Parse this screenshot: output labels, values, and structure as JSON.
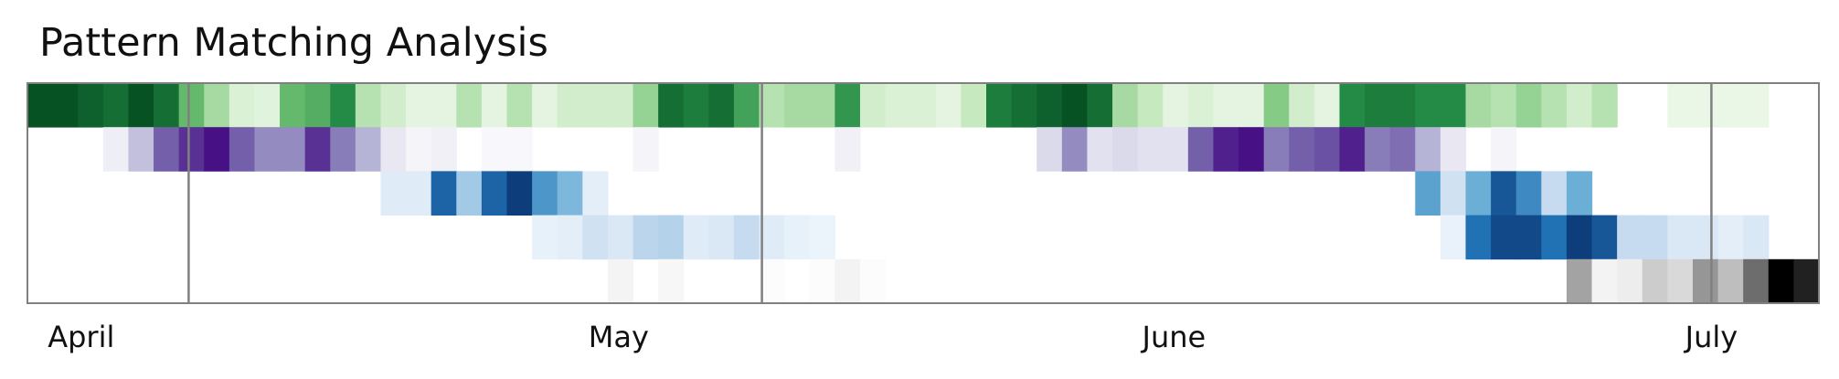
{
  "chart_data": {
    "type": "heatmap",
    "title": "Pattern Matching Analysis",
    "x_unit": "day",
    "x_start": "2023-03-29",
    "x_end": "2023-07-07",
    "month_labels": [
      {
        "label": "April",
        "date": "2023-04-01"
      },
      {
        "label": "May",
        "date": "2023-05-01"
      },
      {
        "label": "June",
        "date": "2023-06-01"
      },
      {
        "label": "July",
        "date": "2023-07-01"
      }
    ],
    "month_boundaries": [
      "2023-04-07",
      "2023-05-09",
      "2023-07-01"
    ],
    "value_range": [
      0,
      1
    ],
    "rows": [
      {
        "colormap": "Greens",
        "values": [
          0.95,
          0.95,
          0.9,
          0.85,
          0.95,
          0.85,
          0.55,
          0.35,
          0.15,
          0.12,
          0.55,
          0.6,
          0.75,
          0.3,
          0.2,
          0.1,
          0.1,
          0.3,
          0.1,
          0.3,
          0.1,
          0.2,
          0.2,
          0.2,
          0.4,
          0.85,
          0.8,
          0.85,
          0.65,
          0.3,
          0.35,
          0.35,
          0.7,
          0.2,
          0.15,
          0.15,
          0.1,
          0.25,
          0.8,
          0.85,
          0.9,
          0.95,
          0.85,
          0.35,
          0.25,
          0.1,
          0.15,
          0.1,
          0.1,
          0.45,
          0.2,
          0.1,
          0.75,
          0.8,
          0.8,
          0.75,
          0.75,
          0.35,
          0.3,
          0.4,
          0.3,
          0.2,
          0.3,
          0.0,
          0.0,
          0.07,
          0.07,
          0.07,
          0.07,
          0.0,
          0.0
        ]
      },
      {
        "colormap": "Purples",
        "values": [
          0.0,
          0.0,
          0.0,
          0.1,
          0.35,
          0.7,
          0.85,
          0.95,
          0.7,
          0.55,
          0.55,
          0.85,
          0.6,
          0.4,
          0.15,
          0.05,
          0.08,
          0.0,
          0.03,
          0.03,
          0.0,
          0.0,
          0.0,
          0.0,
          0.05,
          0.0,
          0.0,
          0.0,
          0.0,
          0.0,
          0.0,
          0.0,
          0.08,
          0.0,
          0.0,
          0.0,
          0.0,
          0.0,
          0.0,
          0.0,
          0.25,
          0.55,
          0.2,
          0.25,
          0.2,
          0.2,
          0.7,
          0.9,
          0.95,
          0.6,
          0.7,
          0.75,
          0.9,
          0.6,
          0.65,
          0.4,
          0.15,
          0.0,
          0.05,
          0.0,
          0.0,
          0.0,
          0.0,
          0.0,
          0.0,
          0.0,
          0.0,
          0.0,
          0.0,
          0.0,
          0.0
        ]
      },
      {
        "colormap": "Blues",
        "values": [
          0.0,
          0.0,
          0.0,
          0.0,
          0.0,
          0.0,
          0.0,
          0.0,
          0.0,
          0.0,
          0.0,
          0.0,
          0.0,
          0.0,
          0.12,
          0.12,
          0.8,
          0.35,
          0.8,
          0.95,
          0.6,
          0.45,
          0.1,
          0.0,
          0.0,
          0.0,
          0.0,
          0.0,
          0.0,
          0.0,
          0.0,
          0.0,
          0.0,
          0.0,
          0.0,
          0.0,
          0.0,
          0.0,
          0.0,
          0.0,
          0.0,
          0.0,
          0.0,
          0.0,
          0.0,
          0.0,
          0.0,
          0.0,
          0.0,
          0.0,
          0.0,
          0.0,
          0.0,
          0.0,
          0.0,
          0.55,
          0.2,
          0.5,
          0.85,
          0.65,
          0.25,
          0.5,
          0.0,
          0.0,
          0.0,
          0.0,
          0.0,
          0.0,
          0.0,
          0.0,
          0.0
        ]
      },
      {
        "colormap": "Blues",
        "values": [
          0.0,
          0.0,
          0.0,
          0.0,
          0.0,
          0.0,
          0.0,
          0.0,
          0.0,
          0.0,
          0.0,
          0.0,
          0.0,
          0.0,
          0.0,
          0.0,
          0.0,
          0.0,
          0.0,
          0.0,
          0.08,
          0.1,
          0.2,
          0.15,
          0.28,
          0.3,
          0.12,
          0.15,
          0.25,
          0.12,
          0.08,
          0.06,
          0.0,
          0.0,
          0.0,
          0.0,
          0.0,
          0.0,
          0.0,
          0.0,
          0.0,
          0.0,
          0.0,
          0.0,
          0.0,
          0.0,
          0.0,
          0.0,
          0.0,
          0.0,
          0.0,
          0.0,
          0.0,
          0.0,
          0.0,
          0.0,
          0.07,
          0.75,
          0.9,
          0.9,
          0.75,
          0.95,
          0.85,
          0.25,
          0.25,
          0.15,
          0.15,
          0.1,
          0.15,
          0.0,
          0.0
        ]
      },
      {
        "colormap": "Greys",
        "values": [
          0.0,
          0.0,
          0.0,
          0.0,
          0.0,
          0.0,
          0.0,
          0.0,
          0.0,
          0.0,
          0.0,
          0.0,
          0.0,
          0.0,
          0.0,
          0.0,
          0.0,
          0.0,
          0.0,
          0.0,
          0.0,
          0.0,
          0.0,
          0.07,
          0.0,
          0.05,
          0.0,
          0.0,
          0.0,
          0.02,
          0.0,
          0.02,
          0.08,
          0.02,
          0.0,
          0.0,
          0.0,
          0.0,
          0.0,
          0.0,
          0.0,
          0.0,
          0.0,
          0.0,
          0.0,
          0.0,
          0.0,
          0.0,
          0.0,
          0.0,
          0.0,
          0.0,
          0.0,
          0.0,
          0.0,
          0.0,
          0.0,
          0.0,
          0.0,
          0.0,
          0.0,
          0.45,
          0.08,
          0.12,
          0.3,
          0.25,
          0.5,
          0.35,
          0.65,
          1.0,
          0.9
        ]
      }
    ]
  }
}
